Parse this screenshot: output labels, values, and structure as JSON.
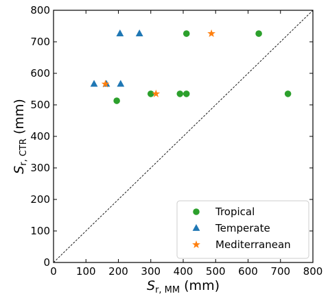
{
  "chart_data": {
    "type": "scatter",
    "xlabel": {
      "main": "S",
      "sub": "r, MM",
      "unit": "(mm)"
    },
    "ylabel": {
      "main": "S",
      "sub": "r, CTR",
      "unit": "(mm)"
    },
    "xlim": [
      0,
      800
    ],
    "ylim": [
      0,
      800
    ],
    "xticks": [
      0,
      100,
      200,
      300,
      400,
      500,
      600,
      700,
      800
    ],
    "yticks": [
      0,
      100,
      200,
      300,
      400,
      500,
      600,
      700,
      800
    ],
    "grid": false,
    "reference_line": {
      "style": "dashed",
      "x": [
        0,
        800
      ],
      "y": [
        0,
        800
      ]
    },
    "legend_position": "bottom-right",
    "series": [
      {
        "name": "Tropical",
        "marker": "circle",
        "color": "#2ca02c",
        "points": [
          [
            195,
            513
          ],
          [
            300,
            535
          ],
          [
            390,
            535
          ],
          [
            410,
            535
          ],
          [
            410,
            726
          ],
          [
            633,
            726
          ],
          [
            723,
            535
          ]
        ]
      },
      {
        "name": "Temperate",
        "marker": "triangle",
        "color": "#1f77b4",
        "points": [
          [
            125,
            566
          ],
          [
            163,
            566
          ],
          [
            207,
            566
          ],
          [
            205,
            726
          ],
          [
            265,
            726
          ]
        ]
      },
      {
        "name": "Mediterranean",
        "marker": "star",
        "color": "#ff7f0e",
        "points": [
          [
            160,
            566
          ],
          [
            316,
            535
          ],
          [
            487,
            726
          ]
        ]
      }
    ]
  }
}
